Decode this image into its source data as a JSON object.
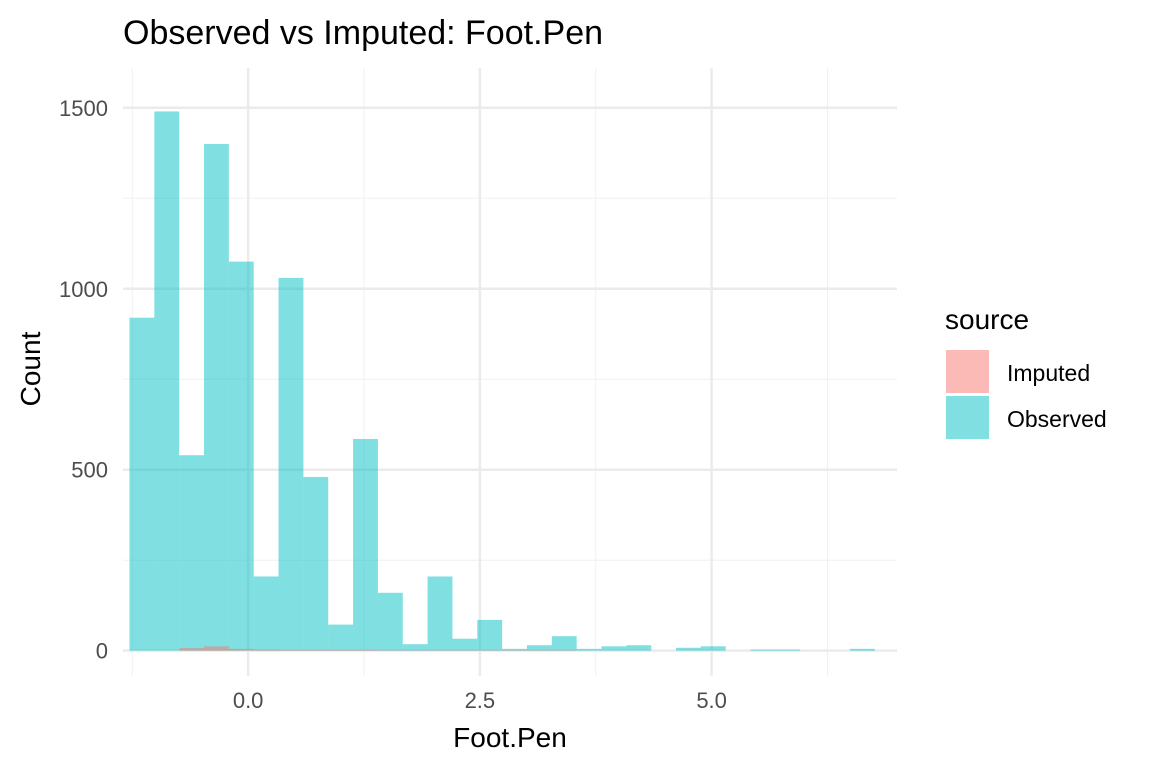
{
  "chart_data": {
    "type": "bar",
    "subtype": "histogram",
    "title": "Observed vs Imputed: Foot.Pen",
    "xlabel": "Foot.Pen",
    "ylabel": "Count",
    "xlim": [
      -1.35,
      7.0
    ],
    "ylim": [
      -70,
      1610
    ],
    "x_ticks": [
      0.0,
      2.5,
      5.0
    ],
    "x_tick_labels": [
      "0.0",
      "2.5",
      "5.0"
    ],
    "y_ticks": [
      0,
      500,
      1000,
      1500
    ],
    "y_tick_labels": [
      "0",
      "500",
      "1000",
      "1500"
    ],
    "bin_width": 0.268,
    "bin_start": -1.28,
    "grid": true,
    "legend": {
      "title": "source",
      "position": "right"
    },
    "series": [
      {
        "name": "Imputed",
        "color": "#F8766D",
        "opacity": 0.5,
        "values": [
          0,
          0,
          7,
          12,
          5,
          3,
          2,
          2,
          2,
          2,
          1,
          1,
          1,
          1,
          1,
          1,
          1,
          1,
          0,
          0,
          0,
          0,
          0,
          0,
          0,
          0,
          0,
          0,
          0,
          0
        ]
      },
      {
        "name": "Observed",
        "color": "#00BFC4",
        "opacity": 0.5,
        "values": [
          920,
          1490,
          540,
          1400,
          1075,
          205,
          1030,
          480,
          72,
          585,
          160,
          18,
          205,
          33,
          85,
          5,
          15,
          40,
          5,
          12,
          15,
          0,
          8,
          12,
          0,
          3,
          3,
          0,
          0,
          5
        ]
      }
    ]
  }
}
